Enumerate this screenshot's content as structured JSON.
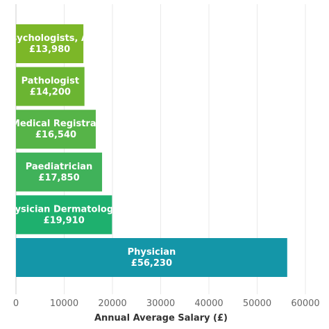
{
  "chart_data": {
    "type": "bar",
    "orientation": "horizontal",
    "categories": [
      "Psychologists, All",
      "Pathologist",
      "Medical Registrar",
      "Paediatrician",
      "Physician Dermatologist",
      "Physician"
    ],
    "values": [
      13980,
      14200,
      16540,
      17850,
      19910,
      56230
    ],
    "value_labels": [
      "£13,980",
      "£14,200",
      "£16,540",
      "£17,850",
      "£19,910",
      "£56,230"
    ],
    "bar_colors": [
      "#7cb728",
      "#6bb532",
      "#56b448",
      "#40b25a",
      "#1eb06e",
      "#1496a8"
    ],
    "xlabel": "Annual Average Salary (£)",
    "xlim": [
      0,
      60000
    ],
    "xticks": [
      "0",
      "10000",
      "20000",
      "30000",
      "40000",
      "50000",
      "60000"
    ],
    "grid": true
  }
}
